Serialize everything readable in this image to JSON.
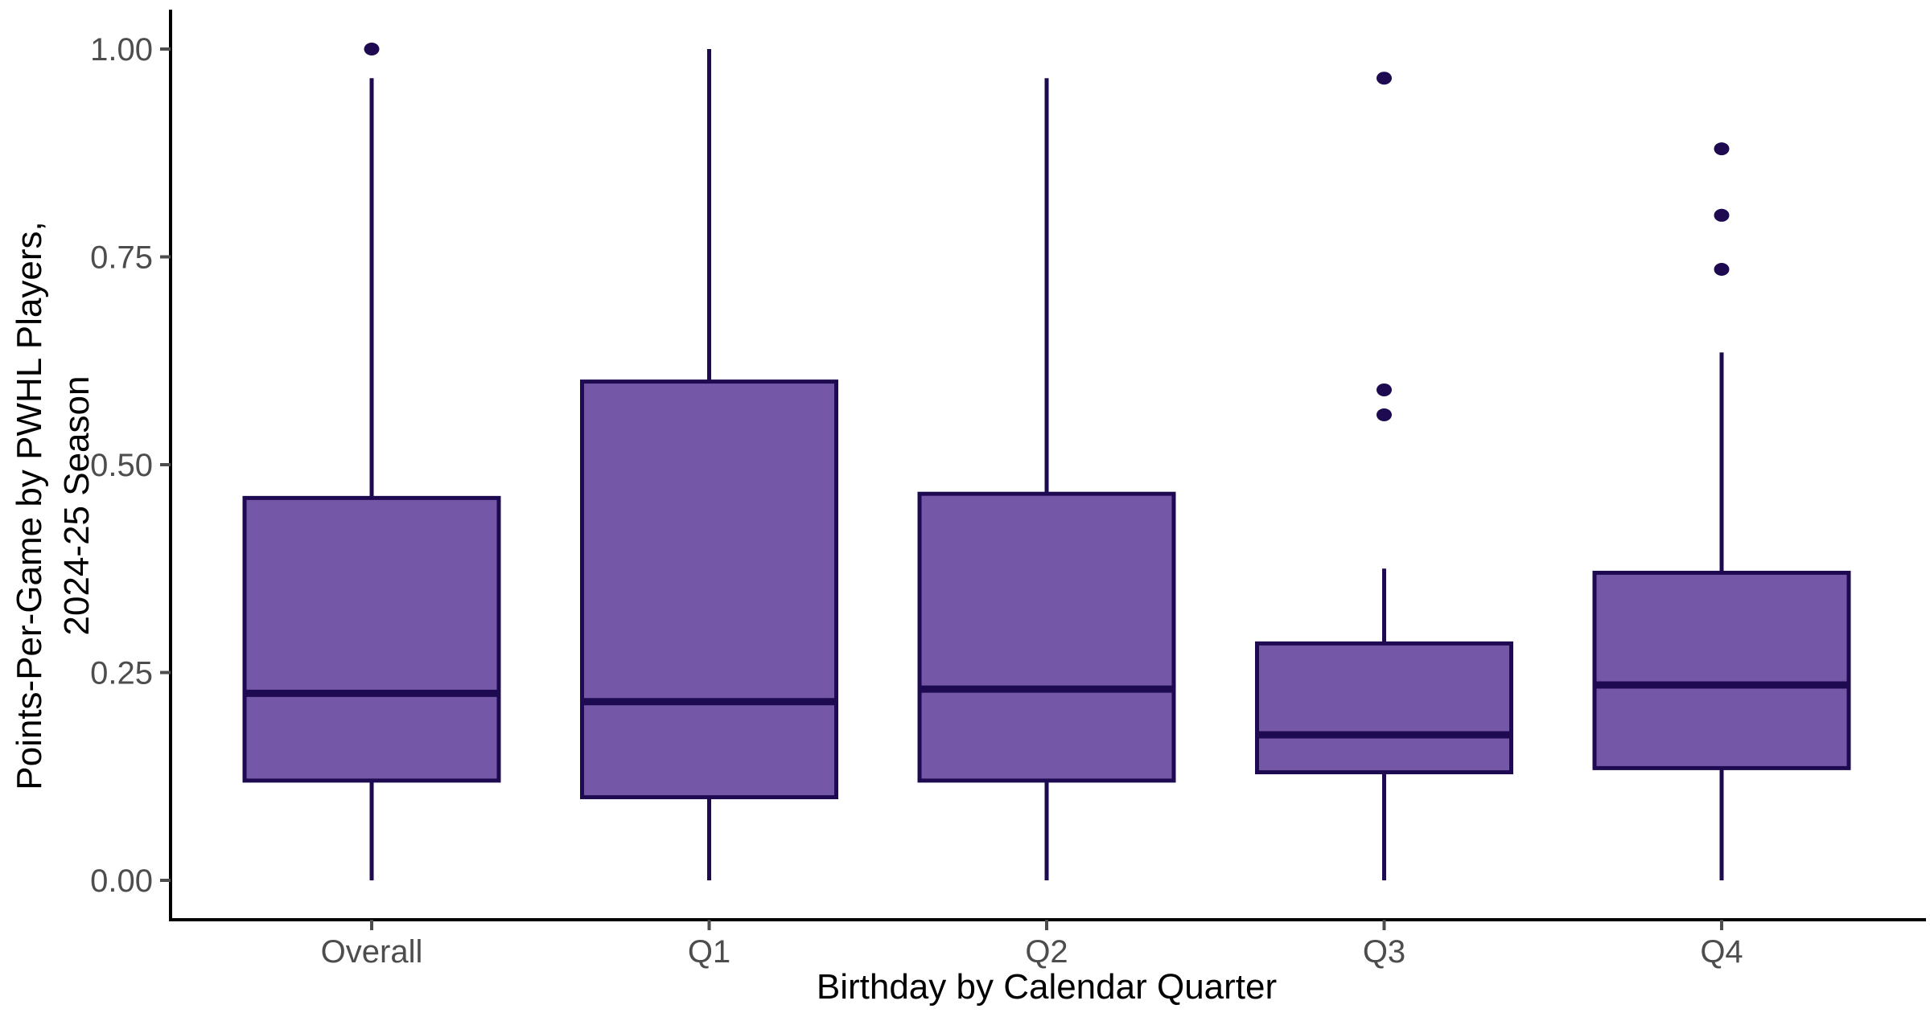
{
  "figure": {
    "y_axis": {
      "title_line1": "Points-Per-Game by PWHL Players,",
      "title_line2": "2024-25 Season",
      "tick_labels": [
        "1.00",
        "0.75",
        "0.50",
        "0.25",
        "0.00"
      ],
      "tick_values": [
        1.0,
        0.75,
        0.5,
        0.25,
        0.0
      ]
    },
    "x_axis": {
      "title": "Birthday by Calendar Quarter",
      "categories": [
        "Overall",
        "Q1",
        "Q2",
        "Q3",
        "Q4"
      ]
    },
    "colors": {
      "box_fill": "#7557A8",
      "box_stroke": "#1E0A50",
      "axis_line": "#000000",
      "tick_label": "#4D4D4D",
      "title_text": "#000000",
      "background": "#FFFFFF"
    }
  },
  "chart_data": {
    "type": "boxplot",
    "title": "",
    "xlabel": "Birthday by Calendar Quarter",
    "ylabel": "Points-Per-Game by PWHL Players, 2024-25 Season",
    "ylim": [
      0,
      1
    ],
    "yticks": [
      0,
      0.25,
      0.5,
      0.75,
      1.0
    ],
    "grid": false,
    "legend": false,
    "categories": [
      "Overall",
      "Q1",
      "Q2",
      "Q3",
      "Q4"
    ],
    "series": [
      {
        "category": "Overall",
        "whisker_low": 0.0,
        "q1": 0.12,
        "median": 0.225,
        "q3": 0.46,
        "whisker_high": 0.965,
        "outliers": [
          1.0
        ]
      },
      {
        "category": "Q1",
        "whisker_low": 0.0,
        "q1": 0.1,
        "median": 0.215,
        "q3": 0.6,
        "whisker_high": 1.0,
        "outliers": []
      },
      {
        "category": "Q2",
        "whisker_low": 0.0,
        "q1": 0.12,
        "median": 0.23,
        "q3": 0.465,
        "whisker_high": 0.965,
        "outliers": []
      },
      {
        "category": "Q3",
        "whisker_low": 0.0,
        "q1": 0.13,
        "median": 0.175,
        "q3": 0.285,
        "whisker_high": 0.375,
        "outliers": [
          0.56,
          0.59,
          0.965
        ]
      },
      {
        "category": "Q4",
        "whisker_low": 0.0,
        "q1": 0.135,
        "median": 0.235,
        "q3": 0.37,
        "whisker_high": 0.635,
        "outliers": [
          0.735,
          0.8,
          0.88
        ]
      }
    ]
  }
}
